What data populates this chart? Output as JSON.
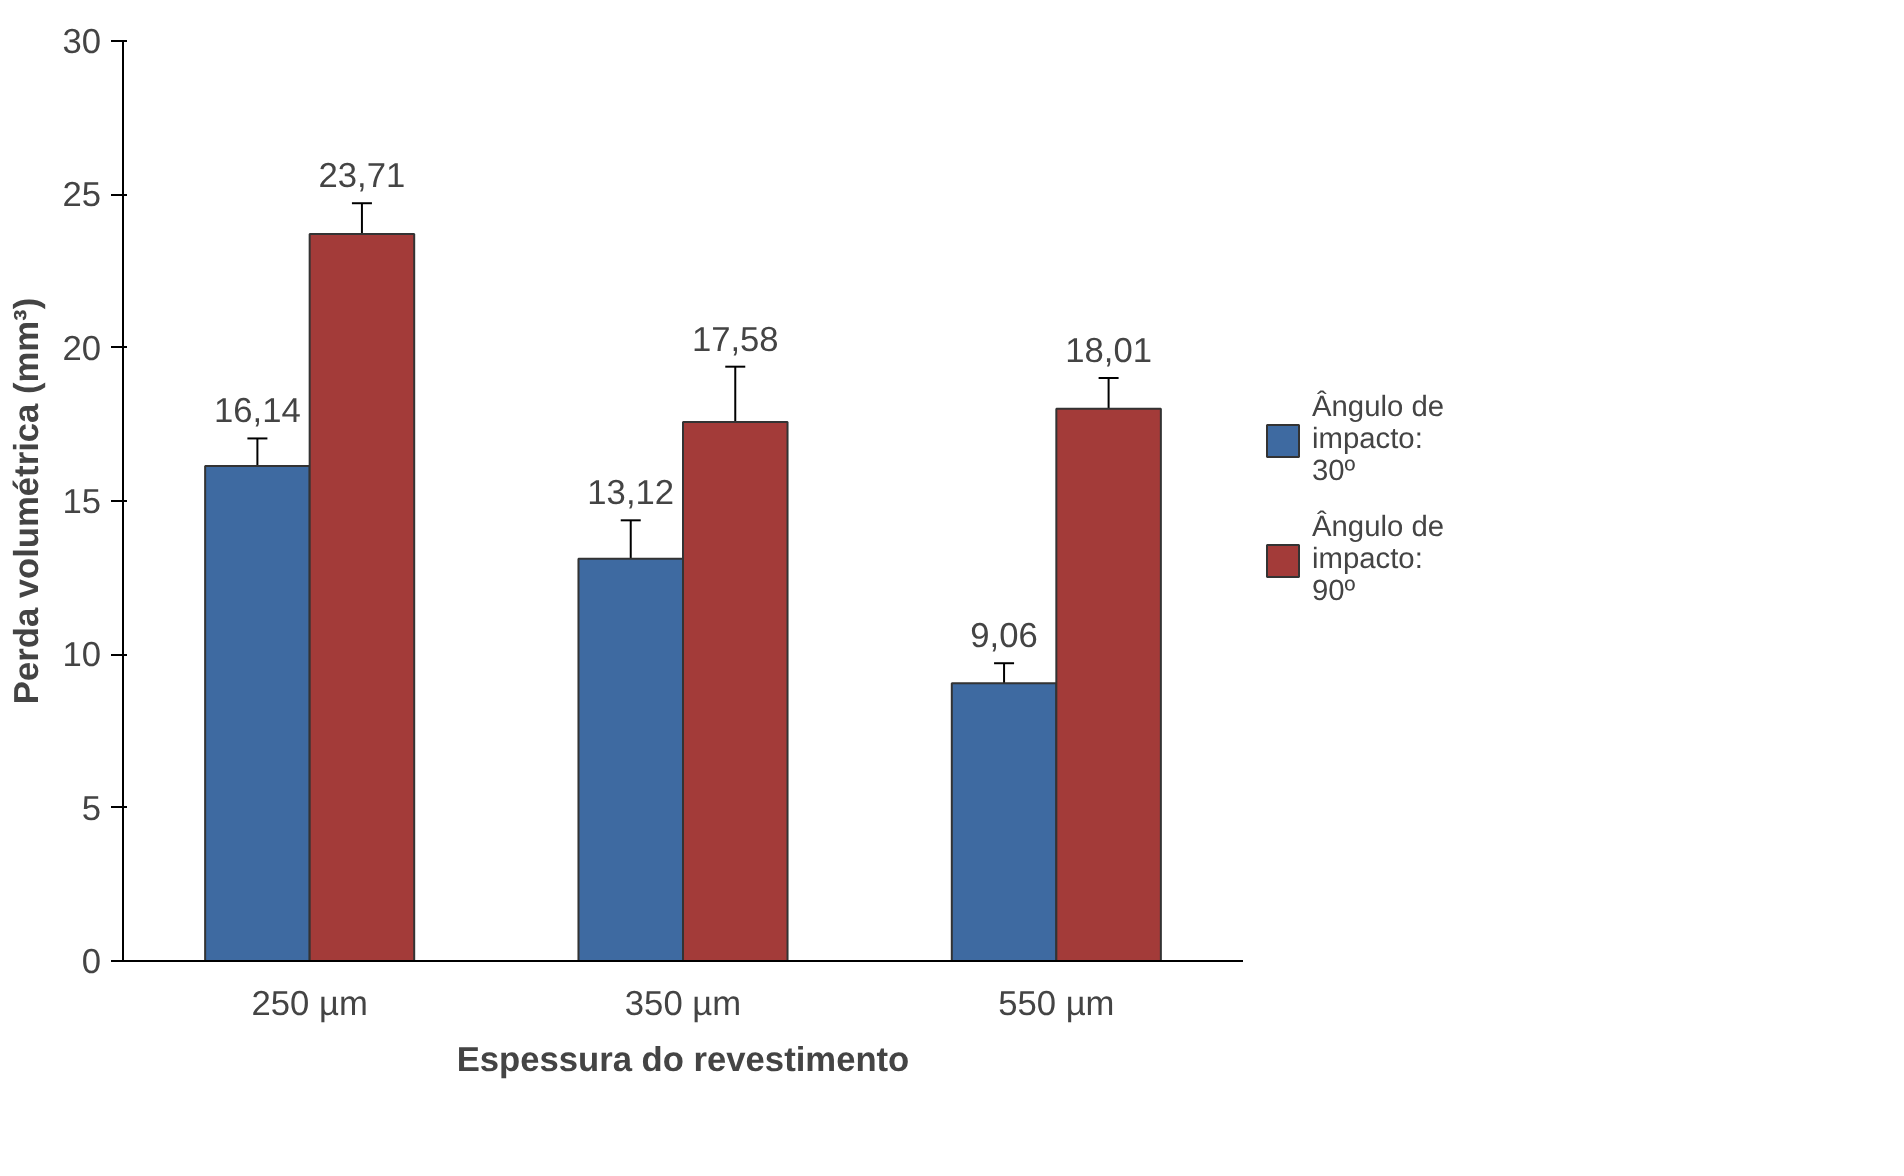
{
  "chart_data": {
    "type": "bar",
    "xlabel": "Espessura do revestimento",
    "ylabel": "Perda volumétrica (mm³)",
    "categories": [
      "250 µm",
      "350 µm",
      "550 µm"
    ],
    "series": [
      {
        "name": "Ângulo de impacto: 30º",
        "color": "#3e6aa1",
        "values": [
          16.14,
          13.12,
          9.06
        ],
        "errors": [
          0.9,
          1.25,
          0.65
        ],
        "value_labels": [
          "16,14",
          "13,12",
          "9,06"
        ]
      },
      {
        "name": "Ângulo de impacto: 90º",
        "color": "#a33b39",
        "values": [
          23.71,
          17.58,
          18.01
        ],
        "errors": [
          1.0,
          1.8,
          1.0
        ],
        "value_labels": [
          "23,71",
          "17,58",
          "18,01"
        ]
      }
    ],
    "ylim": [
      0,
      30
    ],
    "yticks": [
      0,
      5,
      10,
      15,
      20,
      25,
      30
    ],
    "grid": false,
    "legend": "right"
  }
}
